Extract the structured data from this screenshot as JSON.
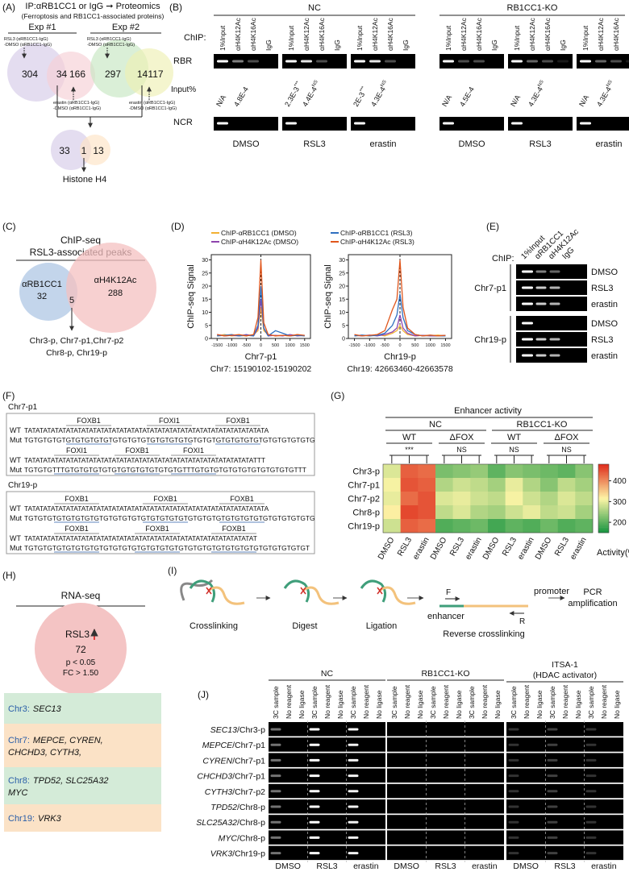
{
  "panelA": {
    "label": "(A)",
    "title": "IP:αRB1CC1 or IgG ➞ Proteomics",
    "subtitle": "(Ferroptosis and RB1CC1-associated proteins)",
    "exp1": {
      "name": "Exp #1",
      "note_top": [
        "RSL3 (αRB1CC1-IgG)",
        "-DMSO (αRB1CC1-IgG)"
      ],
      "only_a": 304,
      "overlap": 34,
      "only_b": 166,
      "note_bottom": [
        "erastin (αRB1CC1-IgG)",
        "-DMSO (αRB1CC1-IgG)"
      ]
    },
    "exp2": {
      "name": "Exp #2",
      "note_top": [
        "RSL3 (αRB1CC1-IgG)",
        "-DMSO (αRB1CC1-IgG)"
      ],
      "only_a": 297,
      "overlap": 14,
      "only_b": 117,
      "note_bottom": [
        "erastin (αRB1CC1-IgG)",
        "-DMSO (αRB1CC1-IgG)"
      ]
    },
    "merge": {
      "only_a": 33,
      "overlap": 1,
      "only_b": 13,
      "result": "Histone H4"
    }
  },
  "panelB": {
    "label": "(B)",
    "groups": [
      "NC",
      "RB1CC1-KO"
    ],
    "chip": "ChIP:",
    "lanes": [
      "1%Input",
      "αH4K12Ac",
      "αH4K16Ac",
      "IgG"
    ],
    "rbr": "RBR",
    "input_label": "Input%",
    "input": [
      [
        {
          "text": "N/A"
        },
        {
          "text": "4.8E-4"
        }
      ],
      [
        {
          "text": "2.3E-3",
          "mark": "***"
        },
        {
          "text": "4.4E-4",
          "mark": "NS"
        }
      ],
      [
        {
          "text": "2E-3",
          "mark": "***"
        },
        {
          "text": "4.3E-4",
          "mark": "NS"
        }
      ],
      [
        {
          "text": "N/A"
        },
        {
          "text": "4.5E-4"
        }
      ],
      [
        {
          "text": "N/A"
        },
        {
          "text": "4.3E-4",
          "mark": "NS"
        }
      ],
      [
        {
          "text": "N/A"
        },
        {
          "text": "4.3E-4",
          "mark": "NS"
        }
      ]
    ],
    "ncr": "NCR",
    "conditions": [
      "DMSO",
      "RSL3",
      "erastin",
      "DMSO",
      "RSL3",
      "erastin"
    ]
  },
  "panelC": {
    "label": "(C)",
    "title": "ChIP-seq",
    "subtitle": "RSL3-associated peaks",
    "set_a": {
      "name": "αRB1CC1",
      "count": 32
    },
    "set_b": {
      "name": "αH4K12Ac",
      "count": 288
    },
    "overlap": 5,
    "peaks": [
      "Chr3-p, Chr7-p1,Chr7-p2",
      "Chr8-p, Chr19-p"
    ]
  },
  "panelD": {
    "label": "(D)"
  },
  "chart_data": [
    {
      "type": "line",
      "xlabel": "Chr7-p1",
      "subtitle": "Chr7: 15190102-15190202",
      "ylabel": "ChIP-seq Signal",
      "x": [
        -1500,
        -1250,
        -1000,
        -750,
        -500,
        -250,
        -100,
        0,
        100,
        250,
        500,
        750,
        1000,
        1250,
        1500
      ],
      "xlim": [
        -1700,
        1700
      ],
      "xticks": [
        -1500,
        -1000,
        -500,
        0,
        500,
        1000,
        1500
      ],
      "ylim": [
        0,
        32
      ],
      "yticks": [
        0,
        5,
        10,
        15,
        20,
        25,
        30
      ],
      "series": [
        {
          "name": "ChIP-αRB1CC1 (DMSO)",
          "color": "#f2b134",
          "values": [
            1,
            1.5,
            1,
            1.2,
            1,
            1.5,
            3,
            12,
            3,
            1.5,
            1,
            1.2,
            1,
            1.5,
            1
          ]
        },
        {
          "name": "ChIP-αH4K12Ac (DMSO)",
          "color": "#8e44ad",
          "values": [
            1.5,
            1,
            1.2,
            1,
            1.5,
            1,
            4,
            15,
            4,
            1,
            1.2,
            1,
            1.5,
            1,
            1.2
          ]
        },
        {
          "name": "ChIP-αRB1CC1 (RSL3)",
          "color": "#2f6fbf",
          "values": [
            1,
            1.2,
            1.5,
            1,
            1.2,
            1,
            5,
            20,
            4,
            1,
            3,
            2,
            1,
            1.2,
            1
          ]
        },
        {
          "name": "ChIP-αH4K12Ac (RSL3)",
          "color": "#e0561c",
          "values": [
            1.5,
            1,
            1.2,
            1.5,
            1,
            1.5,
            8,
            30,
            6,
            1.5,
            1,
            1.2,
            1,
            1.5,
            1.2
          ]
        }
      ]
    },
    {
      "type": "line",
      "xlabel": "Chr19-p",
      "subtitle": "Chr19: 42663460-42663578",
      "ylabel": "ChIP-seq Signal",
      "x": [
        -1500,
        -1250,
        -1000,
        -750,
        -500,
        -250,
        -100,
        0,
        100,
        250,
        500,
        750,
        1000,
        1250,
        1500
      ],
      "xlim": [
        -1700,
        1700
      ],
      "xticks": [
        -1500,
        -1000,
        -500,
        0,
        500,
        1000,
        1500
      ],
      "ylim": [
        0,
        32
      ],
      "yticks": [
        0,
        5,
        10,
        15,
        20,
        25,
        30
      ],
      "series": [
        {
          "color": "#f2b134",
          "values": [
            1,
            1.2,
            1,
            1.5,
            1,
            2,
            3,
            5,
            3,
            1.5,
            1,
            1.2,
            1,
            1.3,
            1
          ]
        },
        {
          "color": "#8e44ad",
          "values": [
            1.2,
            1,
            1.3,
            1,
            1.5,
            2.5,
            4,
            9,
            4,
            2,
            1,
            1.2,
            1,
            1,
            1.2
          ]
        },
        {
          "color": "#2f6fbf",
          "values": [
            1,
            1.3,
            1,
            1.2,
            2,
            5,
            9,
            17,
            8,
            3,
            1.5,
            1,
            1.2,
            1,
            1
          ]
        },
        {
          "color": "#e0561c",
          "values": [
            1.5,
            1,
            1.2,
            1.5,
            3,
            11,
            15,
            30,
            12,
            4,
            1.5,
            1,
            1.3,
            1,
            1.2
          ]
        }
      ]
    },
    {
      "type": "heatmap",
      "rows": [
        "Chr3-p",
        "Chr7-p1",
        "Chr7-p2",
        "Chr8-p",
        "Chr19-p"
      ],
      "categories": [
        "DMSO",
        "RSL3",
        "erastin",
        "DMSO",
        "RSL3",
        "erastin",
        "DMSO",
        "RSL3",
        "erastin",
        "DMSO",
        "RSL3",
        "erastin"
      ],
      "values": [
        [
          290,
          440,
          430,
          220,
          230,
          240,
          200,
          230,
          220,
          210,
          200,
          230
        ],
        [
          310,
          450,
          440,
          260,
          280,
          270,
          250,
          300,
          260,
          230,
          270,
          250
        ],
        [
          300,
          430,
          450,
          290,
          300,
          280,
          270,
          310,
          280,
          260,
          290,
          270
        ],
        [
          320,
          460,
          450,
          270,
          290,
          260,
          250,
          280,
          300,
          270,
          280,
          250
        ],
        [
          280,
          440,
          430,
          190,
          200,
          210,
          180,
          200,
          190,
          210,
          190,
          200
        ]
      ],
      "clim": [
        150,
        480
      ],
      "cticks": [
        200,
        300,
        400
      ],
      "colorbar_label": "Activity(%)",
      "colors": [
        "#1a9641",
        "#fdf5a6",
        "#e0301e"
      ]
    }
  ],
  "panelE": {
    "label": "(E)",
    "chip": "ChIP:",
    "lanes": [
      "1%Input",
      "αRB1CC1",
      "αH4K12Ac",
      "IgG"
    ],
    "regions": [
      "Chr7-p1",
      "Chr19-p"
    ],
    "conditions": [
      "DMSO",
      "RSL3",
      "erastin"
    ]
  },
  "panelF": {
    "label": "(F)",
    "wt_label": "WT",
    "mut_label": "Mut",
    "regions": [
      {
        "name": "Chr7-p1",
        "blocks": [
          {
            "motifs": [
              "FOXB1",
              "FOXI1",
              "FOXB1"
            ],
            "wt": "TATATATATATATATATATATATATATATATATATATATATATATATATATATATATATATATA",
            "mut": "TGTGTGTGTGTGTGTGTGTGTGTGTGTGTGTGTGTGTGTGTGTGTGTGTGTGTGTGTGTGTG"
          },
          {
            "motifs": [
              "FOXI1",
              "FOXB1",
              "FOXI1"
            ],
            "wt": "TATATATATATATATATATATATATATATATATATATATATATATATATATATATATATATTT",
            "mut": "TGTGTGTTTGTGTGTGTGTGTGTGTGTGTGTGTGTTTGTGTGTGTGTGTGTGTGTGTGTTT"
          }
        ]
      },
      {
        "name": "Chr19-p",
        "blocks": [
          {
            "motifs": [
              "FOXB1",
              "FOXB1",
              "FOXB1"
            ],
            "wt": "TATATATATATATATATATATATATATATATATATATATATATATATATATATATATATATATA",
            "mut": "TGTGTGTGTGTGTGTGTGTGTGTGTGTGTGTGTGTGTGTGTGTGTGTGTGTGTGTGTGTGTG"
          },
          {
            "motifs": [
              "FOXB1",
              "FOXB1",
              "FOXB1"
            ],
            "wt": "TATATATATATATATATATATATATATATATATATATATATATATATATATATATATATAT",
            "mut": "TGTGTGTGTGTGTGTGTGTGTGTGTGTGTGTGTGTGTGTGTGTGTGTGTGTGTGTGTGTGT"
          }
        ]
      }
    ]
  },
  "panelG": {
    "label": "(G)",
    "title": "Enhancer activity",
    "groups": [
      "NC",
      "RB1CC1-KO"
    ],
    "subgroups": [
      "WT",
      "ΔFOX",
      "WT",
      "ΔFOX"
    ],
    "significance": [
      "***",
      "NS",
      "NS",
      "NS"
    ]
  },
  "panelH": {
    "label": "(H)",
    "title": "RNA-seq",
    "condition": "RSL3",
    "count": 72,
    "stats": [
      "p < 0.05",
      "FC > 1.50"
    ],
    "genes": [
      {
        "chr": "Chr3:",
        "names": [
          "SEC13"
        ]
      },
      {
        "chr": "Chr7:",
        "names": [
          "MEPCE, CYREN,",
          "CHCHD3, CYTH3,"
        ]
      },
      {
        "chr": "Chr8:",
        "names": [
          "TPD52, SLC25A32",
          "MYC"
        ]
      },
      {
        "chr": "Chr19:",
        "names": [
          "VRK3"
        ]
      }
    ]
  },
  "panelI": {
    "label": "(I)",
    "steps": [
      "Crosslinking",
      "Digest",
      "Ligation",
      "Reverse crosslinking"
    ],
    "forward": "F",
    "reverse": "R",
    "promoter": "promoter",
    "enhancer": "enhancer",
    "result": [
      "PCR",
      "amplification"
    ]
  },
  "panelJ": {
    "label": "(J)",
    "groups": [
      {
        "name": "NC"
      },
      {
        "name": "RB1CC1-KO"
      },
      {
        "name": "ITSA-1",
        "note": "(HDAC activator)"
      }
    ],
    "lanes": [
      "3C sample",
      "No reagent",
      "No ligase"
    ],
    "rows": [
      {
        "gene": "SEC13",
        "region": "/Chr3-p"
      },
      {
        "gene": "MEPCE",
        "region": "/Chr7-p1"
      },
      {
        "gene": "CYREN",
        "region": "/Chr7-p1"
      },
      {
        "gene": "CHCHD3",
        "region": "/Chr7-p1"
      },
      {
        "gene": "CYTH3",
        "region": "/Chr7-p2"
      },
      {
        "gene": "TPD52",
        "region": "/Chr8-p"
      },
      {
        "gene": "SLC25A32",
        "region": "/Chr8-p"
      },
      {
        "gene": "MYC",
        "region": "/Chr8-p"
      },
      {
        "gene": "VRK3",
        "region": "/Chr19-p"
      }
    ],
    "conditions": [
      "DMSO",
      "RSL3",
      "erastin"
    ]
  }
}
